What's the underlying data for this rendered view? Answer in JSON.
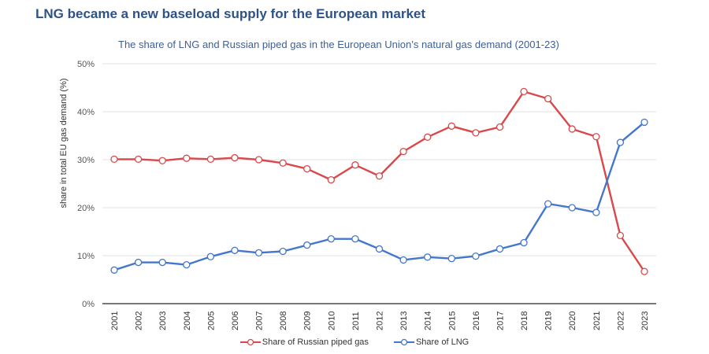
{
  "header": {
    "title": "LNG became a new baseload supply for the European market",
    "subtitle": "The share of LNG and Russian piped gas in the European Union’s natural gas demand (2001-23)"
  },
  "colors": {
    "russian": "#d9484a",
    "lng": "#4477cc",
    "title": "#2f5286",
    "grid": "#e6e6e6",
    "axis": "#777777"
  },
  "chart_data": {
    "type": "line",
    "title": "LNG became a new baseload supply for the European market",
    "subtitle": "The share of LNG and Russian piped gas in the European Union’s natural gas demand (2001-23)",
    "xlabel": "",
    "ylabel": "share in total EU gas demand (%)",
    "ylim": [
      0,
      50
    ],
    "y_ticks": [
      0,
      10,
      20,
      30,
      40,
      50
    ],
    "y_tick_labels": [
      "0%",
      "10%",
      "20%",
      "30%",
      "40%",
      "50%"
    ],
    "grid": true,
    "legend_position": "bottom-center",
    "x": [
      "2001",
      "2002",
      "2003",
      "2004",
      "2005",
      "2006",
      "2007",
      "2008",
      "2009",
      "2010",
      "2011",
      "2012",
      "2013",
      "2014",
      "2015",
      "2016",
      "2017",
      "2018",
      "2019",
      "2020",
      "2021",
      "2022",
      "2023"
    ],
    "series": [
      {
        "name": "Share of Russian piped gas",
        "color": "#d9484a",
        "values": [
          30.1,
          30.1,
          29.8,
          30.3,
          30.1,
          30.4,
          30.0,
          29.3,
          28.1,
          25.8,
          28.9,
          26.6,
          31.7,
          34.7,
          37.0,
          35.6,
          36.8,
          44.2,
          42.7,
          36.4,
          34.8,
          14.2,
          6.7
        ]
      },
      {
        "name": "Share of LNG",
        "color": "#4477cc",
        "values": [
          7.0,
          8.6,
          8.6,
          8.1,
          9.8,
          11.1,
          10.6,
          10.9,
          12.2,
          13.5,
          13.5,
          11.4,
          9.1,
          9.7,
          9.4,
          9.9,
          11.4,
          12.7,
          20.8,
          20.0,
          19.0,
          33.6,
          37.8
        ]
      }
    ]
  }
}
